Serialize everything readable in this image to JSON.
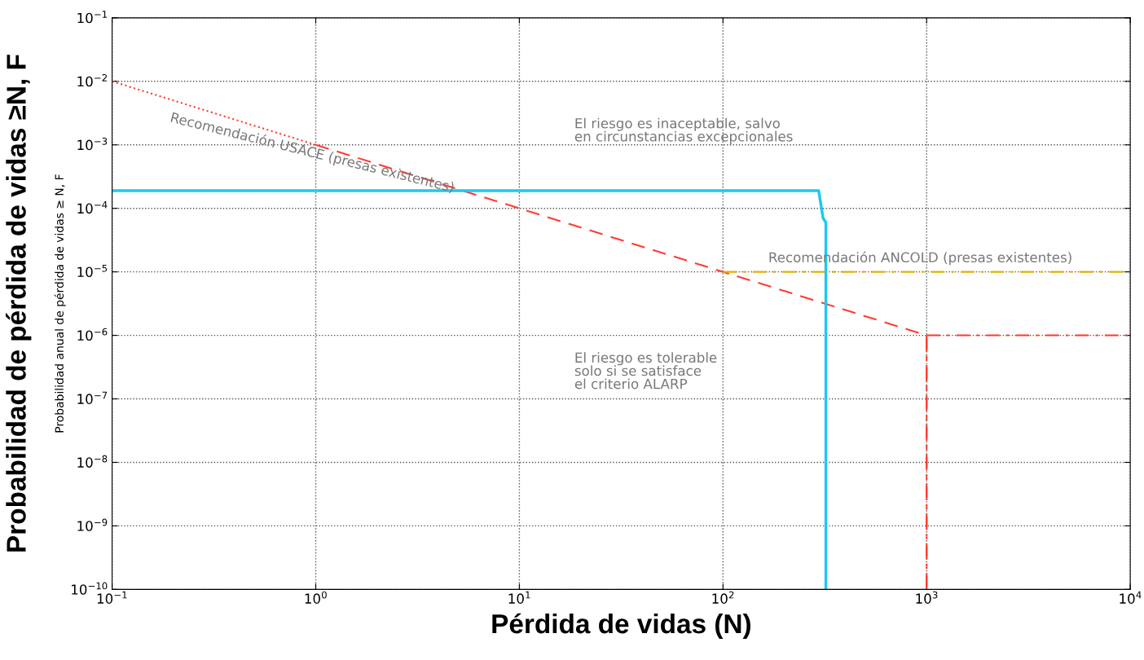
{
  "chart_data": {
    "type": "line",
    "xlabel": "Pérdida de vidas (N)",
    "ylabel": "Probabilidad anual de pérdida de vidas ≥ N, F",
    "log": "xy",
    "grid": true,
    "legend": false,
    "marker": "none",
    "xlim": [
      0.1,
      10000
    ],
    "ylim": [
      1e-10,
      0.1
    ],
    "xticks": [
      {
        "value": 0.1,
        "label": "10$^{−1}$"
      },
      {
        "value": 1,
        "label": "10$^{0}$"
      },
      {
        "value": 10,
        "label": "10$^{1}$"
      },
      {
        "value": 100,
        "label": "10$^{2}$"
      },
      {
        "value": 1000,
        "label": "10$^{3}$"
      },
      {
        "value": 10000,
        "label": "10$^{4}$"
      }
    ],
    "yticks": [
      {
        "value": 1e-10,
        "label": "10$^{−10}$"
      },
      {
        "value": 1e-09,
        "label": "10$^{−9}$"
      },
      {
        "value": 1e-08,
        "label": "10$^{−8}$"
      },
      {
        "value": 1e-07,
        "label": "10$^{−7}$"
      },
      {
        "value": 1e-06,
        "label": "10$^{−6}$"
      },
      {
        "value": 1e-05,
        "label": "10$^{−5}$"
      },
      {
        "value": 0.0001,
        "label": "10$^{−4}$"
      },
      {
        "value": 0.001,
        "label": "10$^{−3}$"
      },
      {
        "value": 0.01,
        "label": "10$^{−2}$"
      },
      {
        "value": 0.1,
        "label": "10$^{−1}$"
      }
    ],
    "series": [
      {
        "name": "Recomendación USACE (presas existentes)",
        "color": "#ff3b30",
        "line_style": [
          "dotted",
          "dashed",
          "dashdot",
          "dashdot",
          "dashdot"
        ],
        "x": [
          0.1,
          1,
          1000,
          1000,
          1000,
          10000
        ],
        "values": [
          0.01,
          0.001,
          1e-06,
          1e-10,
          1e-06,
          1e-06
        ]
      },
      {
        "name": "Recomendación ANCOLD (presas existentes)",
        "color": "#e6b000",
        "line_style": "dashdot",
        "x": [
          100,
          10000
        ],
        "values": [
          1e-05,
          1e-05
        ]
      },
      {
        "color": "#1ec8f0",
        "line_style": "solid",
        "x": [
          0.1,
          295,
          310,
          320,
          320
        ],
        "values": [
          0.00019,
          0.00019,
          7e-05,
          6e-05,
          1e-10
        ]
      }
    ],
    "annotations": [
      "Probabilidad de pérdida de vidas ≥N, F",
      "El riesgo es inaceptable, salvo\nen circunstancias excepcionales",
      "El riesgo es tolerable\nsolo si se satisface\nel criterio ALARP"
    ]
  }
}
